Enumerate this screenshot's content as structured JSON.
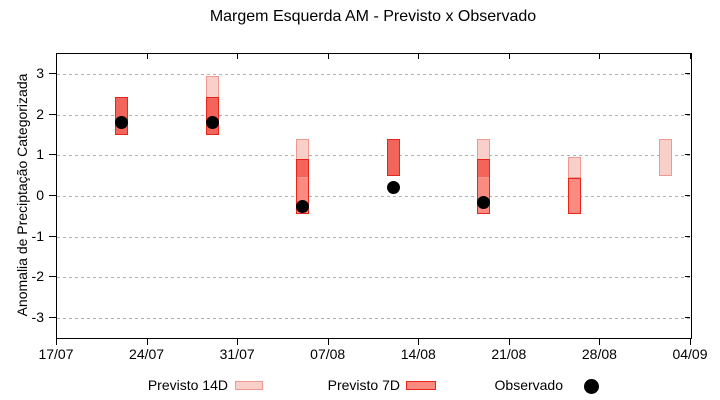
{
  "title": "Margem Esquerda AM - Previsto x Observado",
  "chart_data": {
    "type": "bar",
    "subtype": "range-bars-with-scatter-overlay",
    "title": "Margem Esquerda AM - Previsto x Observado",
    "xlabel": "",
    "ylabel": "Anomalia de Preciptação Categorizada",
    "ylim": [
      -3.5,
      3.5
    ],
    "yticks": [
      3,
      2,
      1,
      0,
      -1,
      -2,
      -3
    ],
    "xticks": [
      "17/07",
      "24/07",
      "31/07",
      "07/08",
      "14/08",
      "21/08",
      "28/08",
      "04/09"
    ],
    "grid": "horizontal dotted gray, no vertical grid",
    "legend_position": "bottom center, outside plot",
    "series": [
      {
        "name": "Previsto 14D",
        "kind": "range",
        "fill_color": "#f9cfc9",
        "border_color": "#f0998f",
        "points": [
          {
            "date": "22/07",
            "low": 1.5,
            "high": 2.45
          },
          {
            "date": "29/07",
            "low": 1.5,
            "high": 2.95
          },
          {
            "date": "05/08",
            "low": 0.45,
            "high": 1.4
          },
          {
            "date": "12/08",
            "low": 0.5,
            "high": 1.4
          },
          {
            "date": "19/08",
            "low": 0.45,
            "high": 1.4
          },
          {
            "date": "26/08",
            "low": 0.45,
            "high": 0.95
          },
          {
            "date": "02/09",
            "low": 0.5,
            "high": 1.4
          }
        ]
      },
      {
        "name": "Previsto 7D",
        "kind": "range",
        "fill_color": "#f98b81",
        "border_color": "#e8251d",
        "overlap_fill_color": "#f3655b",
        "points": [
          {
            "date": "22/07",
            "low": 1.5,
            "high": 2.45
          },
          {
            "date": "29/07",
            "low": 1.5,
            "high": 2.45
          },
          {
            "date": "05/08",
            "low": -0.45,
            "high": 0.9
          },
          {
            "date": "12/08",
            "low": 0.5,
            "high": 1.4
          },
          {
            "date": "19/08",
            "low": -0.45,
            "high": 0.9
          },
          {
            "date": "26/08",
            "low": -0.45,
            "high": 0.45
          }
        ]
      },
      {
        "name": "Observado",
        "kind": "scatter",
        "color": "#000000",
        "points": [
          {
            "date": "22/07",
            "value": 1.8
          },
          {
            "date": "29/07",
            "value": 1.8
          },
          {
            "date": "05/08",
            "value": -0.25
          },
          {
            "date": "12/08",
            "value": 0.2
          },
          {
            "date": "19/08",
            "value": -0.15
          }
        ]
      }
    ]
  },
  "colors": {
    "grid": "#b0b0b0",
    "axis": "#000000",
    "background": "#ffffff"
  }
}
